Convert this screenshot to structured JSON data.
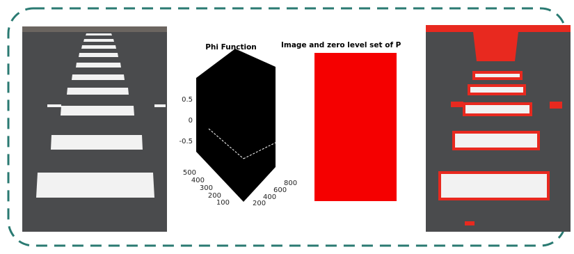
{
  "plot": {
    "title": "Phi Function",
    "z_ticks": [
      "0.5",
      "0",
      "-0.5"
    ],
    "y_ticks": [
      "500",
      "400",
      "300",
      "200",
      "100"
    ],
    "x_ticks": [
      "800",
      "600",
      "400",
      "200"
    ]
  },
  "overlay_title": "Image and zero level set of P"
}
